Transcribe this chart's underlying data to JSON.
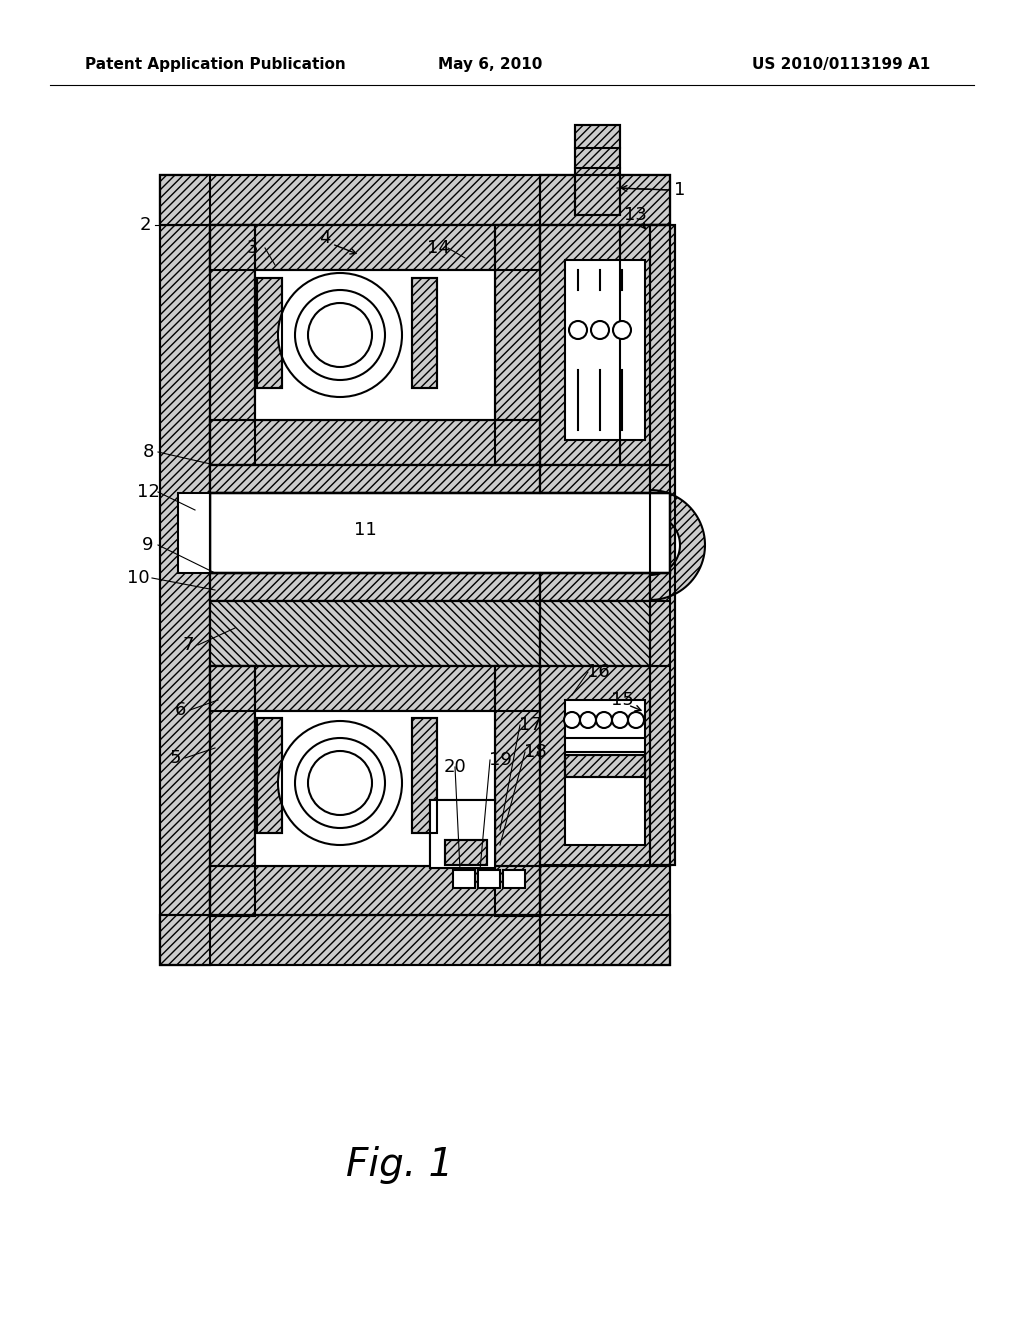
{
  "bg_color": "#ffffff",
  "header_left": "Patent Application Publication",
  "header_center": "May 6, 2010",
  "header_right": "US 2010/0113199 A1",
  "header_fontsize": 11,
  "fig_label": "Fig. 1",
  "fig_label_fontsize": 28,
  "label_fontsize": 13,
  "line_color": "#000000",
  "line_width": 1.5
}
